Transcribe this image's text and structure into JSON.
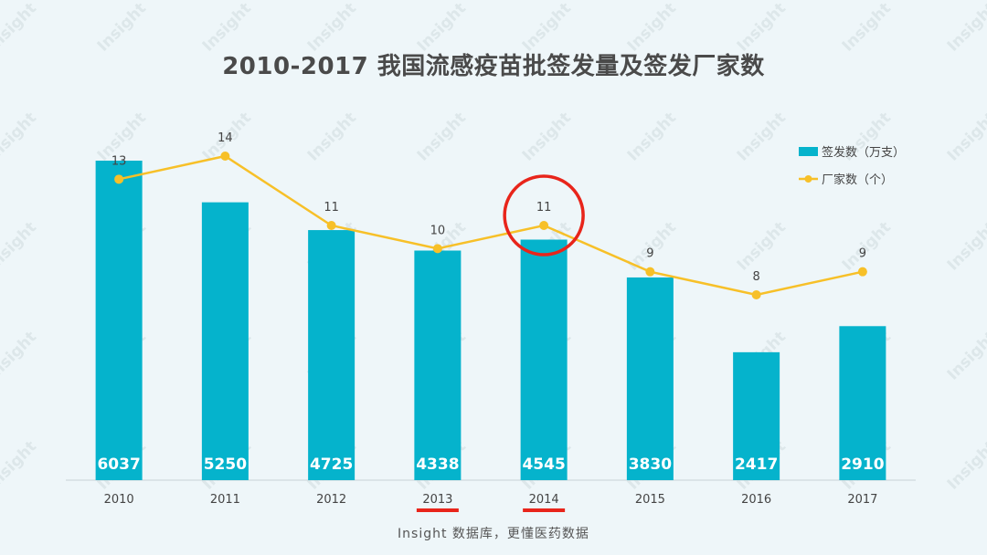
{
  "title": "2010-2017 我国流感疫苗批签发量及签发厂家数",
  "footer": "Insight 数据库，更懂医药数据",
  "watermark": "Insight",
  "colors": {
    "bar": "#05b3cc",
    "line": "#f7c028",
    "highlight_circle": "#e8251b",
    "underline": "#e8251b",
    "axis": "#c8d3d6",
    "text": "#444444"
  },
  "chart_data": {
    "type": "bar",
    "categories": [
      "2010",
      "2011",
      "2012",
      "2013",
      "2014",
      "2015",
      "2016",
      "2017"
    ],
    "series": [
      {
        "name": "签发数（万支）",
        "type": "bar",
        "values": [
          6037,
          5250,
          4725,
          4338,
          4545,
          3830,
          2417,
          2910
        ]
      },
      {
        "name": "厂家数（个）",
        "type": "line",
        "values": [
          13,
          14,
          11,
          10,
          11,
          9,
          8,
          9
        ]
      }
    ],
    "legend": {
      "position": "top-right"
    },
    "highlighted_categories": [
      "2013",
      "2014"
    ],
    "circled_point": "2014"
  }
}
